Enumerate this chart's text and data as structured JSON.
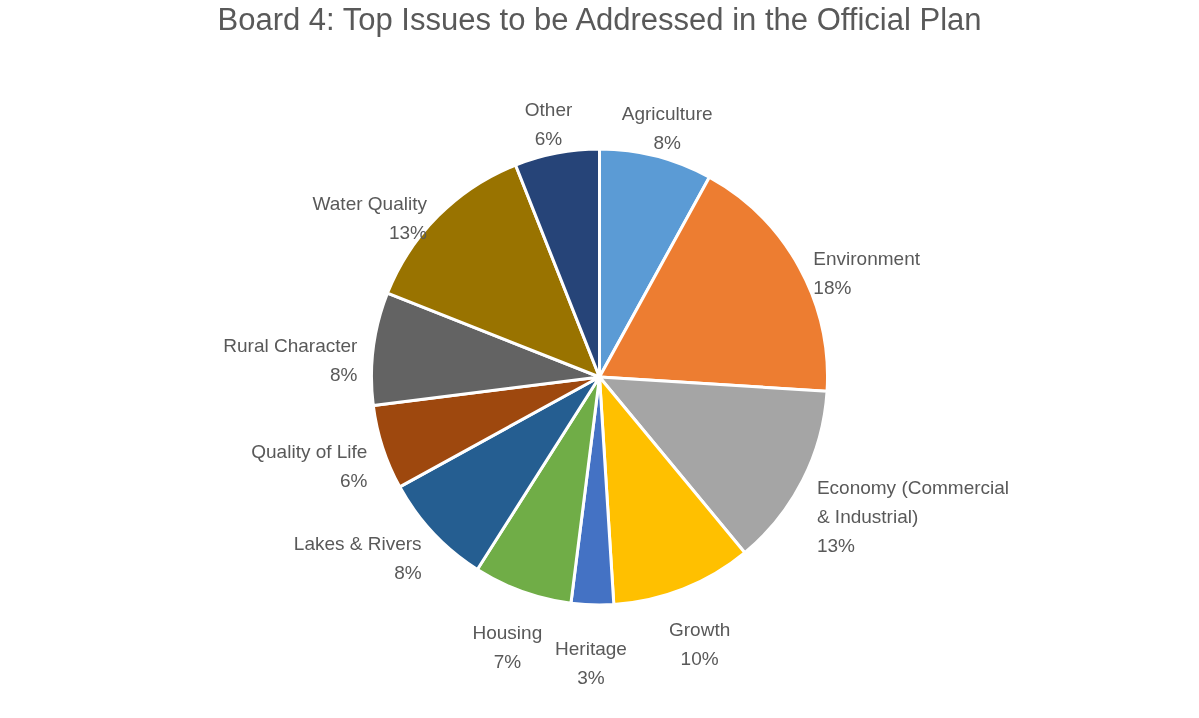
{
  "chart_data": {
    "type": "pie",
    "title": "Board 4: Top Issues to be Addressed in the Official Plan",
    "categories": [
      "Agriculture",
      "Environment",
      "Economy (Commercial & Industrial)",
      "Growth",
      "Heritage",
      "Housing",
      "Lakes & Rivers",
      "Quality of Life",
      "Rural Character",
      "Water Quality",
      "Other"
    ],
    "values": [
      8,
      18,
      13,
      10,
      3,
      7,
      8,
      6,
      8,
      13,
      6
    ],
    "value_labels": [
      "8%",
      "18%",
      "13%",
      "10%",
      "3%",
      "7%",
      "8%",
      "6%",
      "8%",
      "13%",
      "6%"
    ],
    "colors": [
      "#5b9bd5",
      "#ed7d31",
      "#a5a5a5",
      "#ffc000",
      "#4472c4",
      "#70ad47",
      "#255e91",
      "#9e480e",
      "#636363",
      "#997300",
      "#264478"
    ],
    "legend": false
  }
}
